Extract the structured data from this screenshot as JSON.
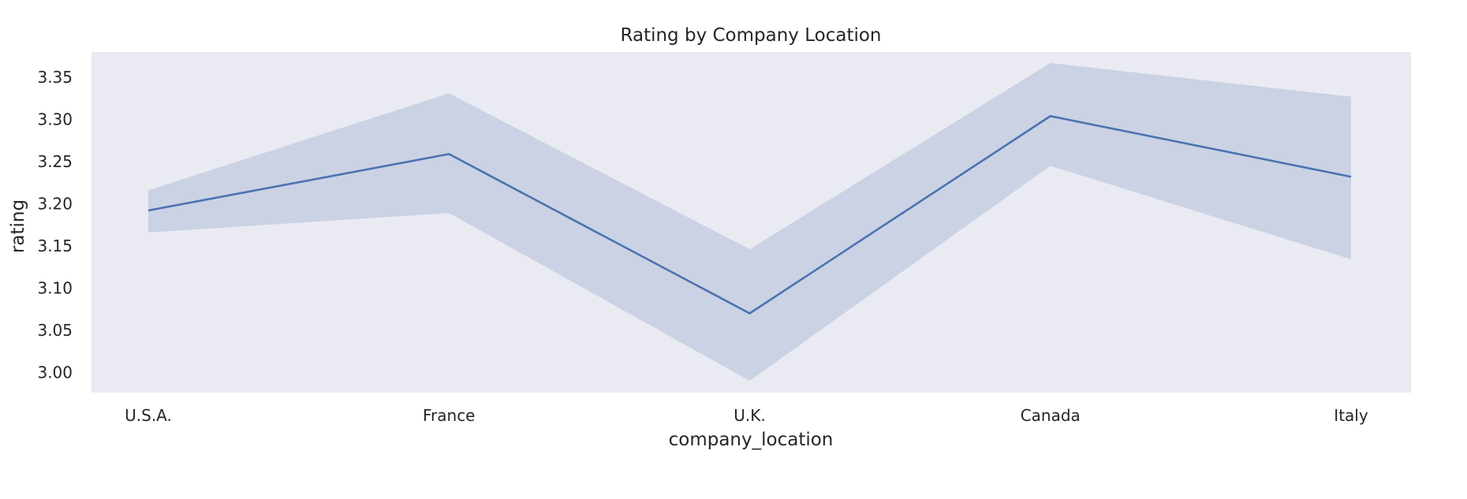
{
  "chart_data": {
    "type": "line",
    "title": "Rating by Company Location",
    "xlabel": "company_location",
    "ylabel": "rating",
    "categories": [
      "U.S.A.",
      "France",
      "U.K.",
      "Canada",
      "Italy"
    ],
    "series": [
      {
        "values": [
          3.192,
          3.259,
          3.07,
          3.304,
          3.232
        ],
        "ci_lower": [
          3.166,
          3.189,
          2.99,
          3.245,
          3.134
        ],
        "ci_upper": [
          3.216,
          3.331,
          3.146,
          3.367,
          3.327
        ]
      }
    ],
    "ylim": [
      2.976,
      3.38
    ],
    "yticks": [
      "3.00",
      "3.05",
      "3.10",
      "3.15",
      "3.20",
      "3.25",
      "3.30",
      "3.35"
    ],
    "grid": false,
    "colors": {
      "line": "#4c72b0",
      "band": "#4c72b0",
      "plot_background": "#eaeaf2"
    }
  }
}
